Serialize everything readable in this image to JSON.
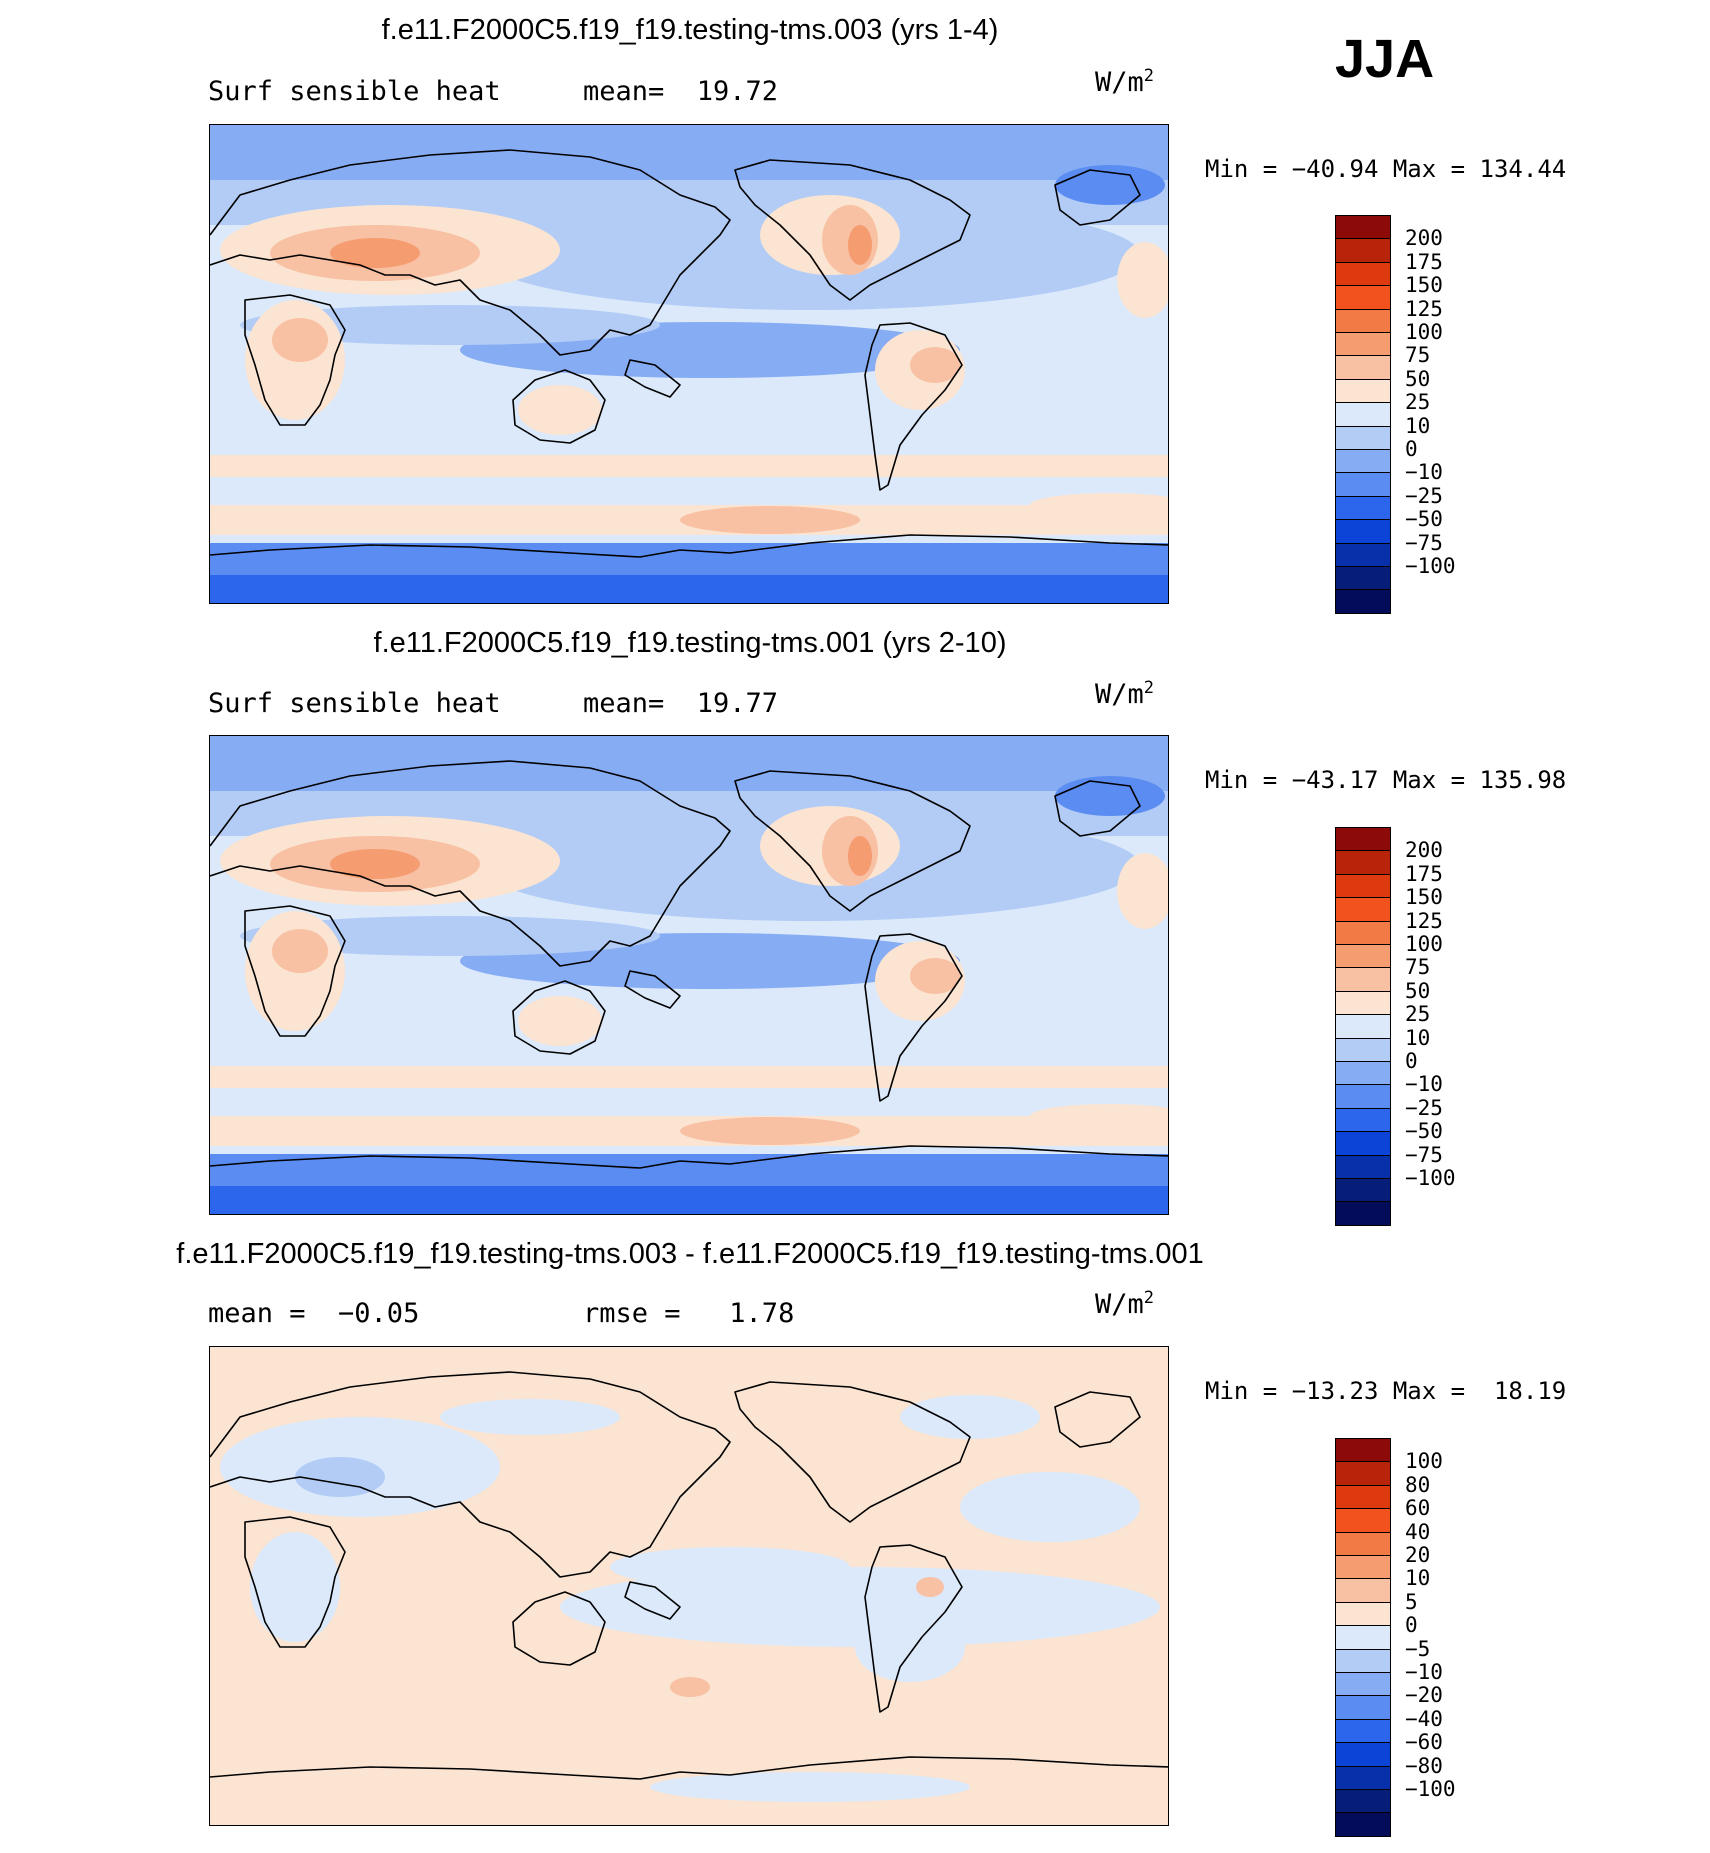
{
  "season": "JJA",
  "panels": [
    {
      "title": "f.e11.F2000C5.f19_f19.testing-tms.003 (yrs 1-4)",
      "left_text": "Surf sensible heat",
      "mid_text": "mean=  19.72",
      "units": "W/m",
      "units_sup": "2",
      "minmax": "Min = −40.94 Max = 134.44",
      "colorbar_labels": [
        "200",
        "175",
        "150",
        "125",
        "100",
        "75",
        "50",
        "25",
        "10",
        "0",
        "−10",
        "−25",
        "−50",
        "−75",
        "−100"
      ],
      "colors": [
        "#8c0a08",
        "#b8240a",
        "#de3a10",
        "#f2521e",
        "#f27a44",
        "#f59c70",
        "#f8c1a4",
        "#fbe4d2",
        "#dbe9fa",
        "#b2ccf6",
        "#86acf4",
        "#5a8cf2",
        "#2c66ec",
        "#0c44d8",
        "#0830aa",
        "#061e78",
        "#030c58"
      ],
      "field_type": "full"
    },
    {
      "title": "f.e11.F2000C5.f19_f19.testing-tms.001 (yrs 2-10)",
      "left_text": "Surf sensible heat",
      "mid_text": "mean=  19.77",
      "units": "W/m",
      "units_sup": "2",
      "minmax": "Min = −43.17 Max = 135.98",
      "colorbar_labels": [
        "200",
        "175",
        "150",
        "125",
        "100",
        "75",
        "50",
        "25",
        "10",
        "0",
        "−10",
        "−25",
        "−50",
        "−75",
        "−100"
      ],
      "colors": [
        "#8c0a08",
        "#b8240a",
        "#de3a10",
        "#f2521e",
        "#f27a44",
        "#f59c70",
        "#f8c1a4",
        "#fbe4d2",
        "#dbe9fa",
        "#b2ccf6",
        "#86acf4",
        "#5a8cf2",
        "#2c66ec",
        "#0c44d8",
        "#0830aa",
        "#061e78",
        "#030c58"
      ],
      "field_type": "full"
    },
    {
      "title": "f.e11.F2000C5.f19_f19.testing-tms.003 - f.e11.F2000C5.f19_f19.testing-tms.001",
      "left_text": "mean =  −0.05",
      "mid_text": "rmse =   1.78",
      "units": "W/m",
      "units_sup": "2",
      "minmax": "Min = −13.23 Max =  18.19",
      "colorbar_labels": [
        "100",
        "80",
        "60",
        "40",
        "20",
        "10",
        "5",
        "0",
        "−5",
        "−10",
        "−20",
        "−40",
        "−60",
        "−80",
        "−100"
      ],
      "colors": [
        "#8c0a08",
        "#b8240a",
        "#de3a10",
        "#f2521e",
        "#f27a44",
        "#f59c70",
        "#f8c1a4",
        "#fbe4d2",
        "#dbe9fa",
        "#b2ccf6",
        "#86acf4",
        "#5a8cf2",
        "#2c66ec",
        "#0c44d8",
        "#0830aa",
        "#061e78",
        "#030c58"
      ],
      "field_type": "diff"
    }
  ]
}
